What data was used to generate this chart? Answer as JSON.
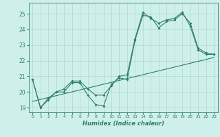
{
  "xlabel": "Humidex (Indice chaleur)",
  "bg_color": "#cff0ea",
  "line_color": "#2e7d6e",
  "grid_color": "#aad8d0",
  "xlim": [
    -0.5,
    23.5
  ],
  "ylim": [
    18.7,
    25.7
  ],
  "yticks": [
    19,
    20,
    21,
    22,
    23,
    24,
    25
  ],
  "xticks": [
    0,
    1,
    2,
    3,
    4,
    5,
    6,
    7,
    8,
    9,
    10,
    11,
    12,
    13,
    14,
    15,
    16,
    17,
    18,
    19,
    20,
    21,
    22,
    23
  ],
  "series1_x": [
    0,
    1,
    2,
    3,
    4,
    5,
    6,
    7,
    8,
    9,
    10,
    11,
    12,
    13,
    14,
    15,
    16,
    17,
    18,
    19,
    20,
    21,
    22,
    23
  ],
  "series1_y": [
    20.8,
    19.0,
    19.5,
    20.0,
    20.0,
    20.6,
    20.6,
    19.8,
    19.2,
    19.1,
    20.5,
    20.9,
    20.8,
    23.3,
    24.9,
    24.8,
    24.1,
    24.5,
    24.6,
    25.0,
    24.4,
    22.8,
    22.5,
    22.4
  ],
  "series2_x": [
    0,
    1,
    2,
    3,
    4,
    5,
    6,
    7,
    8,
    9,
    10,
    11,
    12,
    13,
    14,
    15,
    16,
    17,
    18,
    19,
    20,
    21,
    22,
    23
  ],
  "series2_y": [
    20.8,
    19.0,
    19.6,
    20.0,
    20.2,
    20.7,
    20.7,
    20.2,
    19.8,
    19.8,
    20.4,
    21.0,
    21.1,
    23.4,
    25.1,
    24.7,
    24.4,
    24.6,
    24.7,
    25.1,
    24.2,
    22.7,
    22.4,
    22.4
  ],
  "series3_x": [
    0,
    23
  ],
  "series3_y": [
    19.4,
    22.2
  ]
}
